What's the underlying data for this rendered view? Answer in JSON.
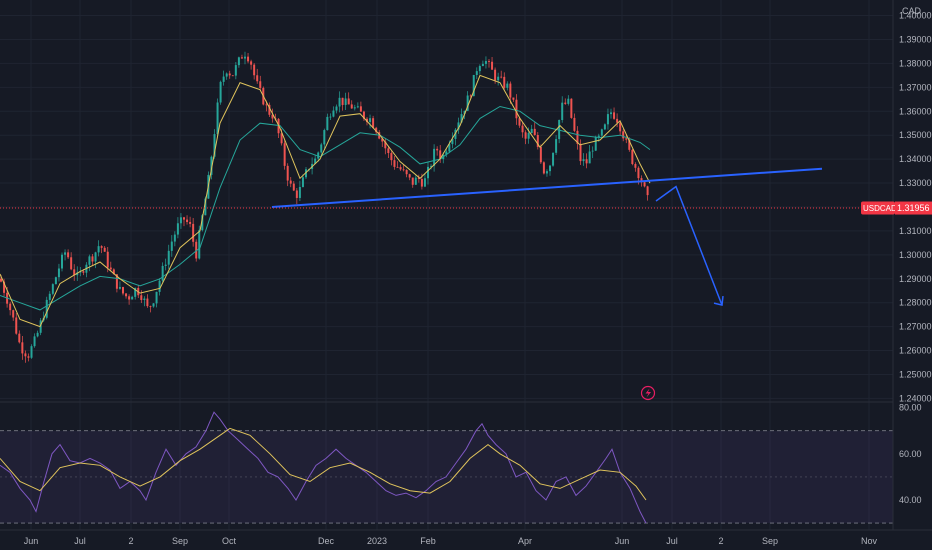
{
  "chart_data": {
    "type": "candlestick",
    "symbol": "USDCAD",
    "currency": "CAD",
    "last_price": "1.31956",
    "price_axis": {
      "ticks": [
        "1.40000",
        "1.39000",
        "1.38000",
        "1.37000",
        "1.36000",
        "1.35000",
        "1.34000",
        "1.33000",
        "1.32000",
        "1.31000",
        "1.30000",
        "1.29000",
        "1.28000",
        "1.27000",
        "1.26000",
        "1.25000",
        "1.24000"
      ],
      "range": [
        1.2385,
        1.4065
      ]
    },
    "time_axis": [
      "Jun",
      "Jul",
      "2",
      "Sep",
      "Oct",
      "Dec",
      "2023",
      "Feb",
      "Apr",
      "Jun",
      "Jul",
      "2",
      "Sep",
      "Nov"
    ],
    "price_path": [
      [
        0,
        1.29
      ],
      [
        6,
        1.283
      ],
      [
        14,
        1.272
      ],
      [
        20,
        1.262
      ],
      [
        28,
        1.258
      ],
      [
        36,
        1.265
      ],
      [
        44,
        1.276
      ],
      [
        52,
        1.286
      ],
      [
        60,
        1.296
      ],
      [
        66,
        1.302
      ],
      [
        72,
        1.294
      ],
      [
        78,
        1.29
      ],
      [
        86,
        1.297
      ],
      [
        94,
        1.3
      ],
      [
        100,
        1.305
      ],
      [
        106,
        1.298
      ],
      [
        112,
        1.292
      ],
      [
        120,
        1.285
      ],
      [
        128,
        1.282
      ],
      [
        136,
        1.286
      ],
      [
        142,
        1.283
      ],
      [
        148,
        1.277
      ],
      [
        154,
        1.282
      ],
      [
        160,
        1.29
      ],
      [
        166,
        1.298
      ],
      [
        172,
        1.306
      ],
      [
        178,
        1.312
      ],
      [
        184,
        1.315
      ],
      [
        190,
        1.312
      ],
      [
        196,
        1.3
      ],
      [
        202,
        1.315
      ],
      [
        208,
        1.33
      ],
      [
        214,
        1.35
      ],
      [
        220,
        1.37
      ],
      [
        226,
        1.378
      ],
      [
        232,
        1.375
      ],
      [
        238,
        1.38
      ],
      [
        244,
        1.385
      ],
      [
        250,
        1.382
      ],
      [
        256,
        1.372
      ],
      [
        262,
        1.366
      ],
      [
        268,
        1.36
      ],
      [
        274,
        1.358
      ],
      [
        280,
        1.348
      ],
      [
        286,
        1.335
      ],
      [
        292,
        1.327
      ],
      [
        298,
        1.325
      ],
      [
        304,
        1.332
      ],
      [
        310,
        1.338
      ],
      [
        316,
        1.34
      ],
      [
        322,
        1.348
      ],
      [
        328,
        1.358
      ],
      [
        334,
        1.363
      ],
      [
        340,
        1.365
      ],
      [
        346,
        1.363
      ],
      [
        352,
        1.362
      ],
      [
        358,
        1.36
      ],
      [
        364,
        1.358
      ],
      [
        370,
        1.357
      ],
      [
        376,
        1.353
      ],
      [
        382,
        1.348
      ],
      [
        388,
        1.342
      ],
      [
        394,
        1.338
      ],
      [
        400,
        1.336
      ],
      [
        406,
        1.333
      ],
      [
        412,
        1.33
      ],
      [
        418,
        1.332
      ],
      [
        424,
        1.33
      ],
      [
        430,
        1.337
      ],
      [
        436,
        1.345
      ],
      [
        442,
        1.34
      ],
      [
        448,
        1.347
      ],
      [
        454,
        1.352
      ],
      [
        460,
        1.358
      ],
      [
        466,
        1.363
      ],
      [
        472,
        1.37
      ],
      [
        478,
        1.38
      ],
      [
        484,
        1.382
      ],
      [
        490,
        1.378
      ],
      [
        496,
        1.374
      ],
      [
        502,
        1.372
      ],
      [
        508,
        1.37
      ],
      [
        514,
        1.362
      ],
      [
        520,
        1.352
      ],
      [
        526,
        1.348
      ],
      [
        532,
        1.352
      ],
      [
        538,
        1.345
      ],
      [
        544,
        1.335
      ],
      [
        550,
        1.338
      ],
      [
        556,
        1.35
      ],
      [
        562,
        1.362
      ],
      [
        568,
        1.364
      ],
      [
        574,
        1.352
      ],
      [
        580,
        1.34
      ],
      [
        586,
        1.338
      ],
      [
        592,
        1.345
      ],
      [
        598,
        1.348
      ],
      [
        604,
        1.352
      ],
      [
        610,
        1.36
      ],
      [
        616,
        1.358
      ],
      [
        622,
        1.352
      ],
      [
        628,
        1.344
      ],
      [
        634,
        1.338
      ],
      [
        640,
        1.333
      ],
      [
        646,
        1.325
      ],
      [
        650,
        1.3196
      ]
    ],
    "ma_fast_path": [
      [
        0,
        1.292
      ],
      [
        20,
        1.273
      ],
      [
        40,
        1.27
      ],
      [
        60,
        1.288
      ],
      [
        80,
        1.293
      ],
      [
        100,
        1.297
      ],
      [
        120,
        1.29
      ],
      [
        140,
        1.284
      ],
      [
        160,
        1.286
      ],
      [
        180,
        1.303
      ],
      [
        200,
        1.31
      ],
      [
        220,
        1.355
      ],
      [
        240,
        1.372
      ],
      [
        260,
        1.369
      ],
      [
        280,
        1.353
      ],
      [
        300,
        1.332
      ],
      [
        320,
        1.34
      ],
      [
        340,
        1.358
      ],
      [
        360,
        1.359
      ],
      [
        380,
        1.35
      ],
      [
        400,
        1.339
      ],
      [
        420,
        1.332
      ],
      [
        440,
        1.34
      ],
      [
        460,
        1.354
      ],
      [
        480,
        1.375
      ],
      [
        500,
        1.372
      ],
      [
        520,
        1.357
      ],
      [
        540,
        1.345
      ],
      [
        560,
        1.354
      ],
      [
        580,
        1.346
      ],
      [
        600,
        1.348
      ],
      [
        620,
        1.356
      ],
      [
        640,
        1.338
      ],
      [
        650,
        1.33
      ]
    ],
    "ma_slow_path": [
      [
        0,
        1.283
      ],
      [
        20,
        1.28
      ],
      [
        40,
        1.277
      ],
      [
        60,
        1.282
      ],
      [
        80,
        1.287
      ],
      [
        100,
        1.291
      ],
      [
        120,
        1.29
      ],
      [
        140,
        1.287
      ],
      [
        160,
        1.29
      ],
      [
        180,
        1.296
      ],
      [
        200,
        1.303
      ],
      [
        220,
        1.328
      ],
      [
        240,
        1.348
      ],
      [
        260,
        1.355
      ],
      [
        280,
        1.354
      ],
      [
        300,
        1.344
      ],
      [
        320,
        1.341
      ],
      [
        340,
        1.346
      ],
      [
        360,
        1.351
      ],
      [
        380,
        1.35
      ],
      [
        400,
        1.345
      ],
      [
        420,
        1.338
      ],
      [
        440,
        1.34
      ],
      [
        460,
        1.346
      ],
      [
        480,
        1.357
      ],
      [
        500,
        1.362
      ],
      [
        520,
        1.36
      ],
      [
        540,
        1.354
      ],
      [
        560,
        1.352
      ],
      [
        580,
        1.35
      ],
      [
        600,
        1.349
      ],
      [
        620,
        1.35
      ],
      [
        640,
        1.347
      ],
      [
        650,
        1.344
      ]
    ],
    "trend_line": [
      [
        272,
        1.32
      ],
      [
        822,
        1.336
      ]
    ],
    "projection": [
      [
        656,
        1.3225
      ],
      [
        676,
        1.3285
      ],
      [
        722,
        1.279
      ]
    ],
    "rsi": {
      "ticks": [
        "80.00",
        "60.00",
        "40.00"
      ],
      "band": [
        30,
        70
      ],
      "range": [
        27,
        82
      ],
      "rsi_path": [
        [
          0,
          55
        ],
        [
          10,
          52
        ],
        [
          20,
          45
        ],
        [
          30,
          40
        ],
        [
          36,
          35
        ],
        [
          44,
          48
        ],
        [
          52,
          60
        ],
        [
          60,
          64
        ],
        [
          70,
          57
        ],
        [
          80,
          56
        ],
        [
          90,
          58
        ],
        [
          100,
          56
        ],
        [
          110,
          53
        ],
        [
          120,
          45
        ],
        [
          130,
          48
        ],
        [
          140,
          44
        ],
        [
          146,
          40
        ],
        [
          156,
          52
        ],
        [
          166,
          62
        ],
        [
          176,
          55
        ],
        [
          186,
          60
        ],
        [
          196,
          63
        ],
        [
          206,
          70
        ],
        [
          214,
          78
        ],
        [
          220,
          75
        ],
        [
          228,
          70
        ],
        [
          238,
          66
        ],
        [
          248,
          62
        ],
        [
          258,
          58
        ],
        [
          268,
          52
        ],
        [
          278,
          50
        ],
        [
          288,
          45
        ],
        [
          296,
          40
        ],
        [
          306,
          48
        ],
        [
          316,
          55
        ],
        [
          326,
          58
        ],
        [
          336,
          62
        ],
        [
          346,
          58
        ],
        [
          356,
          55
        ],
        [
          366,
          52
        ],
        [
          376,
          48
        ],
        [
          386,
          44
        ],
        [
          396,
          42
        ],
        [
          406,
          43
        ],
        [
          416,
          41
        ],
        [
          426,
          44
        ],
        [
          436,
          48
        ],
        [
          446,
          50
        ],
        [
          456,
          56
        ],
        [
          466,
          62
        ],
        [
          476,
          70
        ],
        [
          482,
          73
        ],
        [
          488,
          68
        ],
        [
          496,
          64
        ],
        [
          506,
          60
        ],
        [
          516,
          50
        ],
        [
          526,
          52
        ],
        [
          536,
          44
        ],
        [
          546,
          40
        ],
        [
          556,
          48
        ],
        [
          566,
          50
        ],
        [
          576,
          42
        ],
        [
          586,
          46
        ],
        [
          596,
          52
        ],
        [
          606,
          58
        ],
        [
          612,
          62
        ],
        [
          620,
          52
        ],
        [
          630,
          45
        ],
        [
          640,
          35
        ],
        [
          646,
          30
        ]
      ],
      "ma_path": [
        [
          0,
          58
        ],
        [
          20,
          48
        ],
        [
          40,
          44
        ],
        [
          60,
          54
        ],
        [
          80,
          56
        ],
        [
          100,
          55
        ],
        [
          120,
          50
        ],
        [
          140,
          46
        ],
        [
          160,
          50
        ],
        [
          180,
          57
        ],
        [
          200,
          62
        ],
        [
          220,
          68
        ],
        [
          230,
          71
        ],
        [
          250,
          68
        ],
        [
          270,
          60
        ],
        [
          290,
          51
        ],
        [
          310,
          48
        ],
        [
          330,
          54
        ],
        [
          350,
          56
        ],
        [
          370,
          52
        ],
        [
          390,
          47
        ],
        [
          410,
          44
        ],
        [
          430,
          43
        ],
        [
          450,
          48
        ],
        [
          470,
          58
        ],
        [
          488,
          64
        ],
        [
          500,
          60
        ],
        [
          520,
          55
        ],
        [
          540,
          47
        ],
        [
          560,
          45
        ],
        [
          580,
          49
        ],
        [
          600,
          53
        ],
        [
          620,
          52
        ],
        [
          636,
          46
        ],
        [
          646,
          40
        ]
      ]
    }
  }
}
